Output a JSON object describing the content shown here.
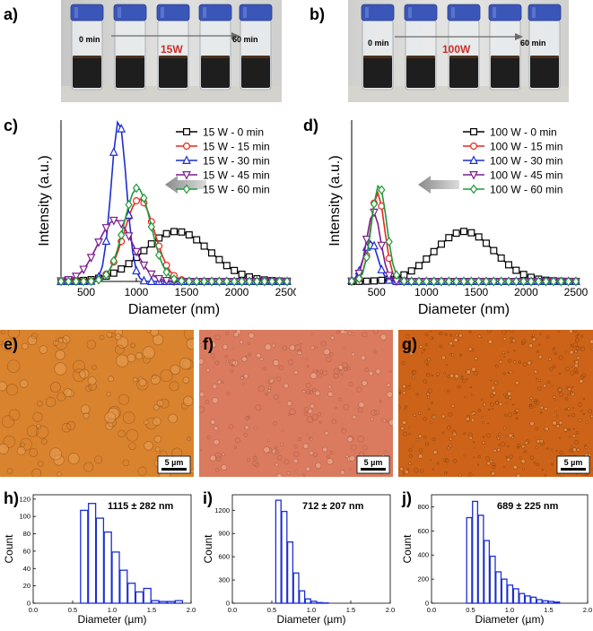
{
  "panels": {
    "a": {
      "label": "a)",
      "start": "0 min",
      "power": "15W",
      "end": "60 min"
    },
    "b": {
      "label": "b)",
      "start": "0 min",
      "power": "100W",
      "end": "60 min"
    },
    "c": {
      "label": "c)"
    },
    "d": {
      "label": "d)"
    },
    "e": {
      "label": "e)",
      "scale": "5 µm"
    },
    "f": {
      "label": "f)",
      "scale": "5 µm"
    },
    "g": {
      "label": "g)",
      "scale": "5 µm"
    },
    "h": {
      "label": "h)"
    },
    "i": {
      "label": "i)"
    },
    "j": {
      "label": "j)"
    }
  },
  "colors": {
    "black": "#000000",
    "red": "#e8271f",
    "blue": "#1c2fd0",
    "purple": "#7a1f8e",
    "green": "#1f9a3a",
    "hist": "#1c2fd0",
    "power_text": "#c8302a",
    "vial_cap": "#3a56b8",
    "liquid": "#1e1e1e"
  },
  "chart_data": [
    {
      "id": "c",
      "type": "line",
      "xlabel": "Diameter (nm)",
      "ylabel": "Intensity (a.u.)",
      "xlim": [
        250,
        2500
      ],
      "ylim": [
        0,
        1
      ],
      "xticks": [
        500,
        1000,
        1500,
        2000,
        2500
      ],
      "series": [
        {
          "name": "15 W - 0 min",
          "color": "black",
          "marker": "square",
          "mu": 1400,
          "sigma": 330,
          "peak": 0.31,
          "range": [
            250,
            2500
          ]
        },
        {
          "name": "15 W - 15 min",
          "color": "red",
          "marker": "circle",
          "mu": 1030,
          "sigma": 150,
          "peak": 0.51,
          "range": [
            250,
            2500
          ]
        },
        {
          "name": "15 W - 30 min",
          "color": "blue",
          "marker": "triangle",
          "mu": 825,
          "sigma": 75,
          "peak": 1.0,
          "range": [
            250,
            2500
          ]
        },
        {
          "name": "15 W - 45 min",
          "color": "purple",
          "marker": "triangle-down",
          "mu": 790,
          "sigma": 175,
          "peak": 0.38,
          "range": [
            250,
            2500
          ]
        },
        {
          "name": "15 W - 60 min",
          "color": "green",
          "marker": "diamond",
          "mu": 1010,
          "sigma": 135,
          "peak": 0.58,
          "range": [
            250,
            2500
          ]
        }
      ]
    },
    {
      "id": "d",
      "type": "line",
      "xlabel": "Diameter (nm)",
      "ylabel": "Intensity (a.u.)",
      "xlim": [
        250,
        2500
      ],
      "ylim": [
        0,
        1
      ],
      "xticks": [
        500,
        1000,
        1500,
        2000,
        2500
      ],
      "series": [
        {
          "name": "100 W - 0 min",
          "color": "black",
          "marker": "square",
          "mu": 1380,
          "sigma": 300,
          "peak": 0.31,
          "range": [
            250,
            2500
          ]
        },
        {
          "name": "100 W - 15 min",
          "color": "red",
          "marker": "circle",
          "mu": 510,
          "sigma": 70,
          "peak": 0.55,
          "range": [
            250,
            2500
          ]
        },
        {
          "name": "100 W - 30 min",
          "color": "blue",
          "marker": "triangle",
          "mu": 440,
          "sigma": 70,
          "peak": 0.25,
          "range": [
            250,
            2500
          ]
        },
        {
          "name": "100 W - 45 min",
          "color": "purple",
          "marker": "triangle-down",
          "mu": 470,
          "sigma": 70,
          "peak": 0.43,
          "range": [
            250,
            2500
          ]
        },
        {
          "name": "100 W - 60 min",
          "color": "green",
          "marker": "diamond",
          "mu": 525,
          "sigma": 75,
          "peak": 0.6,
          "range": [
            250,
            2500
          ]
        }
      ]
    },
    {
      "id": "h",
      "type": "bar",
      "title": "1115 ± 282 nm",
      "xlabel": "Diameter (µm)",
      "ylabel": "Count",
      "xlim": [
        0,
        2.0
      ],
      "ylim": [
        0,
        125
      ],
      "xticks": [
        0.0,
        0.5,
        1.0,
        1.5,
        2.0
      ],
      "yticks": [
        0,
        20,
        40,
        60,
        80,
        100,
        120
      ],
      "bin_start": 0.6,
      "bin_width": 0.1,
      "values": [
        107,
        115,
        98,
        82,
        59,
        38,
        23,
        13,
        17,
        3,
        2,
        2,
        3
      ]
    },
    {
      "id": "i",
      "type": "bar",
      "title": "712 ± 207 nm",
      "xlabel": "Diameter (µm)",
      "ylabel": "Count",
      "xlim": [
        0,
        2.0
      ],
      "ylim": [
        0,
        1400
      ],
      "xticks": [
        0.0,
        0.5,
        1.0,
        1.5,
        2.0
      ],
      "yticks": [
        0,
        300,
        600,
        900,
        1200
      ],
      "bin_start": 0.55,
      "bin_width": 0.075,
      "values": [
        1330,
        1185,
        790,
        390,
        160,
        55,
        25,
        8,
        4
      ]
    },
    {
      "id": "j",
      "type": "bar",
      "title": "689 ± 225 nm",
      "xlabel": "Diameter (µm)",
      "ylabel": "Count",
      "xlim": [
        0,
        2.0
      ],
      "ylim": [
        0,
        900
      ],
      "xticks": [
        0.0,
        0.5,
        1.0,
        1.5,
        2.0
      ],
      "yticks": [
        0,
        200,
        400,
        600,
        800
      ],
      "bin_start": 0.45,
      "bin_width": 0.075,
      "values": [
        710,
        845,
        730,
        520,
        390,
        260,
        200,
        150,
        120,
        80,
        60,
        50,
        30,
        20,
        15,
        10
      ]
    }
  ]
}
